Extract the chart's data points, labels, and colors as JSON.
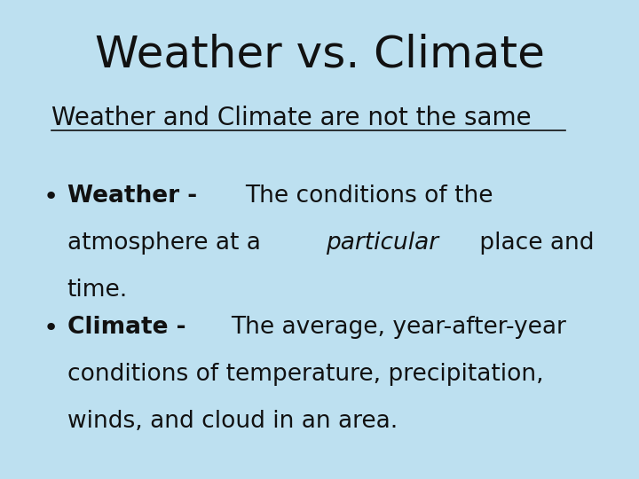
{
  "title": "Weather vs. Climate",
  "subtitle": "Weather and Climate are not the same",
  "background_color": "#bde0f0",
  "title_fontsize": 36,
  "subtitle_fontsize": 20,
  "body_fontsize": 19,
  "text_color": "#111111",
  "bullet1_bold": "Weather - ",
  "bullet2_bold": "Climate - "
}
